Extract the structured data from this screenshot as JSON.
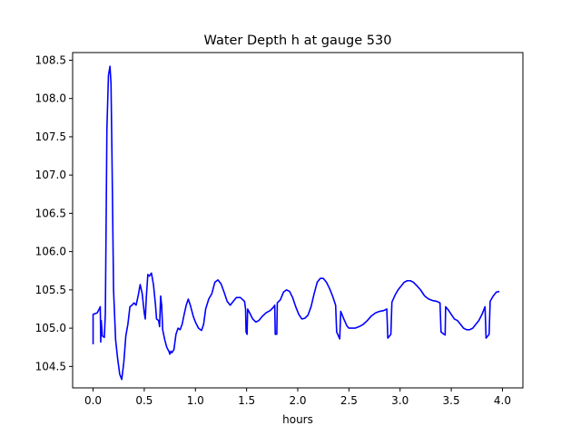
{
  "chart_data": {
    "type": "line",
    "title": "Water Depth h at gauge 530",
    "xlabel": "hours",
    "ylabel": "",
    "xlim": [
      -0.2,
      4.2
    ],
    "ylim": [
      104.22,
      108.6
    ],
    "x_ticks": [
      0.0,
      0.5,
      1.0,
      1.5,
      2.0,
      2.5,
      3.0,
      3.5,
      4.0
    ],
    "x_tick_labels": [
      "0.0",
      "0.5",
      "1.0",
      "1.5",
      "2.0",
      "2.5",
      "3.0",
      "3.5",
      "4.0"
    ],
    "y_ticks": [
      104.5,
      105.0,
      105.5,
      106.0,
      106.5,
      107.0,
      107.5,
      108.0,
      108.5
    ],
    "y_tick_labels": [
      "104.5",
      "105.0",
      "105.5",
      "106.0",
      "106.5",
      "107.0",
      "107.5",
      "108.0",
      "108.5"
    ],
    "grid": false,
    "legend": "none",
    "series": [
      {
        "color": "#0000ff",
        "points": [
          [
            0.0,
            104.79
          ],
          [
            0.0,
            105.18
          ],
          [
            0.04,
            105.2
          ],
          [
            0.06,
            105.25
          ],
          [
            0.07,
            105.28
          ],
          [
            0.075,
            104.82
          ],
          [
            0.08,
            105.1
          ],
          [
            0.09,
            104.9
          ],
          [
            0.11,
            104.88
          ],
          [
            0.12,
            105.2
          ],
          [
            0.135,
            107.6
          ],
          [
            0.15,
            108.3
          ],
          [
            0.165,
            108.42
          ],
          [
            0.175,
            108.2
          ],
          [
            0.185,
            107.2
          ],
          [
            0.2,
            105.5
          ],
          [
            0.22,
            104.85
          ],
          [
            0.24,
            104.6
          ],
          [
            0.26,
            104.4
          ],
          [
            0.28,
            104.33
          ],
          [
            0.3,
            104.55
          ],
          [
            0.32,
            104.9
          ],
          [
            0.34,
            105.05
          ],
          [
            0.36,
            105.28
          ],
          [
            0.38,
            105.3
          ],
          [
            0.4,
            105.33
          ],
          [
            0.42,
            105.3
          ],
          [
            0.44,
            105.42
          ],
          [
            0.46,
            105.57
          ],
          [
            0.48,
            105.45
          ],
          [
            0.5,
            105.2
          ],
          [
            0.51,
            105.12
          ],
          [
            0.52,
            105.4
          ],
          [
            0.535,
            105.7
          ],
          [
            0.55,
            105.68
          ],
          [
            0.57,
            105.72
          ],
          [
            0.59,
            105.57
          ],
          [
            0.61,
            105.3
          ],
          [
            0.62,
            105.12
          ],
          [
            0.64,
            105.1
          ],
          [
            0.65,
            105.02
          ],
          [
            0.66,
            105.42
          ],
          [
            0.67,
            105.3
          ],
          [
            0.68,
            104.98
          ],
          [
            0.7,
            104.85
          ],
          [
            0.72,
            104.75
          ],
          [
            0.74,
            104.7
          ],
          [
            0.75,
            104.66
          ],
          [
            0.76,
            104.7
          ],
          [
            0.77,
            104.68
          ],
          [
            0.79,
            104.72
          ],
          [
            0.81,
            104.92
          ],
          [
            0.83,
            105.0
          ],
          [
            0.85,
            104.98
          ],
          [
            0.87,
            105.05
          ],
          [
            0.89,
            105.18
          ],
          [
            0.91,
            105.3
          ],
          [
            0.93,
            105.38
          ],
          [
            0.95,
            105.3
          ],
          [
            0.98,
            105.15
          ],
          [
            1.0,
            105.08
          ],
          [
            1.03,
            105.0
          ],
          [
            1.06,
            104.97
          ],
          [
            1.08,
            105.05
          ],
          [
            1.1,
            105.25
          ],
          [
            1.13,
            105.38
          ],
          [
            1.16,
            105.45
          ],
          [
            1.19,
            105.6
          ],
          [
            1.22,
            105.63
          ],
          [
            1.25,
            105.58
          ],
          [
            1.28,
            105.47
          ],
          [
            1.31,
            105.35
          ],
          [
            1.34,
            105.3
          ],
          [
            1.37,
            105.35
          ],
          [
            1.4,
            105.4
          ],
          [
            1.44,
            105.4
          ],
          [
            1.48,
            105.35
          ],
          [
            1.49,
            105.25
          ],
          [
            1.495,
            104.95
          ],
          [
            1.505,
            104.92
          ],
          [
            1.51,
            105.25
          ],
          [
            1.53,
            105.2
          ],
          [
            1.56,
            105.12
          ],
          [
            1.59,
            105.08
          ],
          [
            1.62,
            105.1
          ],
          [
            1.65,
            105.15
          ],
          [
            1.69,
            105.2
          ],
          [
            1.73,
            105.23
          ],
          [
            1.76,
            105.27
          ],
          [
            1.775,
            105.3
          ],
          [
            1.78,
            104.92
          ],
          [
            1.795,
            104.92
          ],
          [
            1.8,
            105.33
          ],
          [
            1.83,
            105.37
          ],
          [
            1.86,
            105.47
          ],
          [
            1.89,
            105.5
          ],
          [
            1.92,
            105.48
          ],
          [
            1.95,
            105.4
          ],
          [
            1.98,
            105.28
          ],
          [
            2.01,
            105.18
          ],
          [
            2.04,
            105.12
          ],
          [
            2.07,
            105.13
          ],
          [
            2.1,
            105.17
          ],
          [
            2.13,
            105.28
          ],
          [
            2.16,
            105.45
          ],
          [
            2.19,
            105.6
          ],
          [
            2.22,
            105.65
          ],
          [
            2.25,
            105.65
          ],
          [
            2.28,
            105.6
          ],
          [
            2.31,
            105.52
          ],
          [
            2.34,
            105.42
          ],
          [
            2.37,
            105.3
          ],
          [
            2.38,
            104.95
          ],
          [
            2.41,
            104.86
          ],
          [
            2.42,
            105.22
          ],
          [
            2.45,
            105.12
          ],
          [
            2.48,
            105.03
          ],
          [
            2.5,
            105.0
          ],
          [
            2.53,
            105.0
          ],
          [
            2.56,
            105.0
          ],
          [
            2.6,
            105.02
          ],
          [
            2.64,
            105.05
          ],
          [
            2.68,
            105.1
          ],
          [
            2.72,
            105.16
          ],
          [
            2.76,
            105.2
          ],
          [
            2.8,
            105.22
          ],
          [
            2.84,
            105.23
          ],
          [
            2.87,
            105.25
          ],
          [
            2.88,
            104.87
          ],
          [
            2.91,
            104.92
          ],
          [
            2.92,
            105.34
          ],
          [
            2.95,
            105.43
          ],
          [
            2.98,
            105.5
          ],
          [
            3.01,
            105.55
          ],
          [
            3.04,
            105.6
          ],
          [
            3.07,
            105.62
          ],
          [
            3.1,
            105.62
          ],
          [
            3.13,
            105.6
          ],
          [
            3.16,
            105.56
          ],
          [
            3.2,
            105.5
          ],
          [
            3.24,
            105.42
          ],
          [
            3.28,
            105.38
          ],
          [
            3.32,
            105.36
          ],
          [
            3.36,
            105.35
          ],
          [
            3.39,
            105.33
          ],
          [
            3.4,
            104.95
          ],
          [
            3.44,
            104.91
          ],
          [
            3.445,
            105.28
          ],
          [
            3.47,
            105.24
          ],
          [
            3.5,
            105.18
          ],
          [
            3.53,
            105.12
          ],
          [
            3.56,
            105.1
          ],
          [
            3.59,
            105.05
          ],
          [
            3.62,
            105.0
          ],
          [
            3.65,
            104.98
          ],
          [
            3.68,
            104.98
          ],
          [
            3.71,
            105.0
          ],
          [
            3.74,
            105.05
          ],
          [
            3.77,
            105.1
          ],
          [
            3.8,
            105.18
          ],
          [
            3.83,
            105.28
          ],
          [
            3.84,
            104.87
          ],
          [
            3.87,
            104.92
          ],
          [
            3.88,
            105.35
          ],
          [
            3.91,
            105.42
          ],
          [
            3.94,
            105.47
          ],
          [
            3.97,
            105.48
          ]
        ]
      }
    ]
  }
}
